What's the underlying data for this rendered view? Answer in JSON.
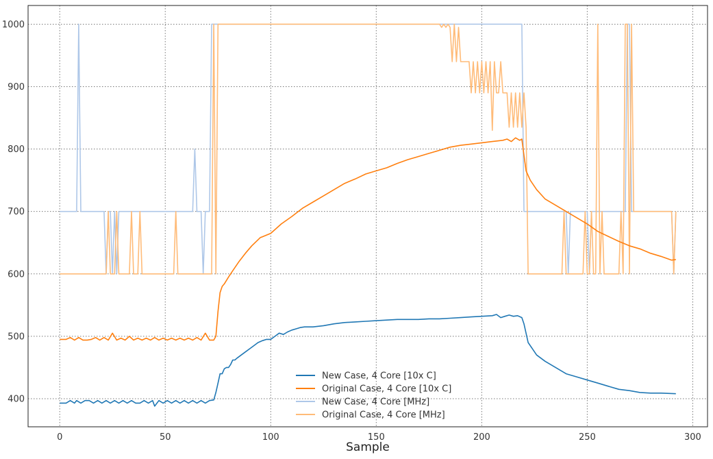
{
  "chart_data": {
    "type": "line",
    "title": "",
    "xlabel": "Sample",
    "ylabel": "",
    "xlim": [
      -15,
      307
    ],
    "ylim": [
      355,
      1030
    ],
    "xticks": [
      0,
      50,
      100,
      150,
      200,
      250,
      300
    ],
    "yticks": [
      400,
      500,
      600,
      700,
      800,
      900,
      1000
    ],
    "grid": true,
    "legend_position": "lower-center",
    "series": [
      {
        "name": "New Case, 4 Core [10x C]",
        "color": "#1f77b4",
        "x": [
          0,
          3,
          5,
          7,
          8,
          10,
          12,
          14,
          16,
          18,
          20,
          22,
          24,
          26,
          28,
          30,
          32,
          34,
          36,
          38,
          40,
          42,
          44,
          45,
          47,
          49,
          51,
          53,
          55,
          57,
          59,
          61,
          63,
          65,
          67,
          69,
          71,
          73,
          74,
          75,
          76,
          77,
          78,
          79,
          80,
          81,
          82,
          83,
          84,
          86,
          88,
          90,
          92,
          94,
          96,
          98,
          100,
          102,
          104,
          106,
          108,
          110,
          112,
          114,
          116,
          118,
          120,
          125,
          130,
          135,
          140,
          145,
          150,
          155,
          160,
          165,
          170,
          175,
          180,
          185,
          190,
          195,
          200,
          205,
          207,
          209,
          211,
          213,
          215,
          217,
          219,
          220,
          222,
          224,
          226,
          230,
          235,
          240,
          245,
          250,
          255,
          260,
          265,
          270,
          275,
          280,
          285,
          292
        ],
        "y": [
          393,
          393,
          397,
          393,
          397,
          393,
          397,
          397,
          393,
          397,
          393,
          397,
          393,
          397,
          393,
          397,
          393,
          397,
          393,
          393,
          397,
          393,
          397,
          388,
          397,
          393,
          397,
          393,
          397,
          393,
          397,
          393,
          397,
          393,
          397,
          393,
          397,
          398,
          410,
          425,
          440,
          440,
          448,
          450,
          450,
          455,
          462,
          462,
          465,
          470,
          475,
          480,
          485,
          490,
          493,
          495,
          495,
          500,
          505,
          503,
          507,
          510,
          512,
          514,
          515,
          515,
          515,
          517,
          520,
          522,
          523,
          524,
          525,
          526,
          527,
          527,
          527,
          528,
          528,
          529,
          530,
          531,
          532,
          533,
          535,
          530,
          532,
          534,
          532,
          533,
          530,
          520,
          490,
          480,
          470,
          460,
          450,
          440,
          435,
          430,
          425,
          420,
          415,
          413,
          410,
          409,
          409,
          408
        ]
      },
      {
        "name": "Original Case, 4 Core [10x C]",
        "color": "#ff7f0e",
        "x": [
          0,
          3,
          5,
          7,
          9,
          11,
          13,
          15,
          17,
          19,
          21,
          23,
          25,
          27,
          29,
          31,
          33,
          35,
          37,
          39,
          41,
          43,
          45,
          47,
          49,
          51,
          53,
          55,
          57,
          59,
          61,
          63,
          65,
          67,
          69,
          71,
          73,
          74,
          75,
          76,
          77,
          78,
          80,
          82,
          85,
          88,
          91,
          95,
          100,
          105,
          110,
          115,
          120,
          125,
          130,
          135,
          140,
          145,
          150,
          155,
          160,
          165,
          170,
          175,
          180,
          185,
          190,
          195,
          200,
          205,
          210,
          212,
          214,
          216,
          218,
          219,
          220,
          221,
          223,
          226,
          230,
          235,
          240,
          245,
          250,
          255,
          260,
          265,
          270,
          275,
          280,
          285,
          290,
          292
        ],
        "y": [
          495,
          495,
          498,
          494,
          498,
          494,
          494,
          495,
          498,
          494,
          498,
          494,
          505,
          494,
          497,
          494,
          500,
          494,
          497,
          494,
          497,
          494,
          498,
          494,
          497,
          494,
          497,
          494,
          497,
          494,
          497,
          494,
          498,
          494,
          505,
          494,
          494,
          500,
          540,
          570,
          580,
          584,
          595,
          605,
          620,
          633,
          645,
          658,
          665,
          680,
          692,
          705,
          715,
          725,
          735,
          745,
          752,
          760,
          765,
          770,
          777,
          783,
          788,
          793,
          798,
          803,
          806,
          808,
          810,
          812,
          814,
          816,
          812,
          818,
          814,
          816,
          790,
          765,
          750,
          735,
          720,
          710,
          700,
          690,
          680,
          668,
          660,
          652,
          645,
          640,
          633,
          628,
          622,
          623
        ]
      },
      {
        "name": "New Case, 4 Core [MHz]",
        "color": "#aec7e8",
        "x": [
          0,
          5,
          8,
          9,
          10,
          11,
          15,
          20,
          21,
          22,
          23,
          24,
          25,
          26,
          27,
          28,
          29,
          30,
          35,
          40,
          45,
          50,
          55,
          60,
          61,
          62,
          63,
          64,
          65,
          66,
          67,
          68,
          69,
          70,
          71,
          72,
          73,
          74,
          75,
          100,
          150,
          200,
          218,
          219,
          220,
          221,
          225,
          230,
          235,
          238,
          240,
          241,
          242,
          243,
          245,
          250,
          251,
          252,
          253,
          255,
          260,
          265,
          268,
          269,
          270,
          271,
          272,
          275,
          280,
          285,
          290,
          291,
          292
        ],
        "y": [
          700,
          700,
          700,
          1000,
          700,
          700,
          700,
          700,
          700,
          600,
          700,
          700,
          600,
          700,
          600,
          700,
          700,
          700,
          700,
          700,
          700,
          700,
          700,
          700,
          700,
          700,
          700,
          800,
          700,
          700,
          700,
          600,
          700,
          700,
          700,
          1000,
          1000,
          1000,
          1000,
          1000,
          1000,
          1000,
          1000,
          1000,
          700,
          700,
          700,
          700,
          700,
          700,
          700,
          600,
          700,
          700,
          700,
          700,
          600,
          700,
          700,
          700,
          700,
          700,
          700,
          1000,
          1000,
          700,
          700,
          700,
          700,
          700,
          700,
          600,
          700
        ]
      },
      {
        "name": "Original Case, 4 Core [MHz]",
        "color": "#ffbb78",
        "x": [
          0,
          10,
          20,
          22,
          23,
          24,
          25,
          26,
          27,
          28,
          30,
          33,
          34,
          35,
          37,
          38,
          39,
          42,
          45,
          50,
          54,
          55,
          56,
          60,
          65,
          70,
          72,
          73,
          74,
          75,
          100,
          150,
          180,
          181,
          182,
          183,
          184,
          185,
          186,
          187,
          188,
          189,
          190,
          191,
          192,
          193,
          194,
          195,
          196,
          197,
          198,
          199,
          200,
          201,
          202,
          203,
          204,
          205,
          206,
          207,
          208,
          209,
          210,
          211,
          212,
          213,
          214,
          215,
          216,
          217,
          218,
          219,
          220,
          221,
          222,
          230,
          235,
          237,
          238,
          239,
          240,
          241,
          245,
          248,
          249,
          250,
          251,
          252,
          253,
          254,
          255,
          256,
          257,
          258,
          260,
          265,
          266,
          267,
          268,
          269,
          270,
          271,
          272,
          275,
          280,
          285,
          290,
          291,
          292
        ],
        "y": [
          600,
          600,
          600,
          600,
          700,
          600,
          600,
          600,
          700,
          600,
          600,
          600,
          700,
          600,
          600,
          700,
          600,
          600,
          600,
          600,
          600,
          700,
          600,
          600,
          600,
          600,
          600,
          1000,
          600,
          1000,
          1000,
          1000,
          1000,
          995,
          1000,
          995,
          1000,
          995,
          940,
          1000,
          940,
          995,
          940,
          940,
          940,
          940,
          940,
          890,
          940,
          890,
          940,
          890,
          940,
          890,
          940,
          890,
          940,
          830,
          940,
          890,
          890,
          940,
          890,
          890,
          890,
          835,
          890,
          835,
          890,
          835,
          890,
          835,
          890,
          835,
          600,
          600,
          600,
          600,
          600,
          700,
          600,
          600,
          600,
          600,
          700,
          600,
          600,
          700,
          600,
          600,
          1000,
          600,
          700,
          600,
          600,
          600,
          700,
          600,
          1000,
          1000,
          600,
          1000,
          700,
          700,
          700,
          700,
          700,
          600,
          700
        ]
      }
    ]
  }
}
